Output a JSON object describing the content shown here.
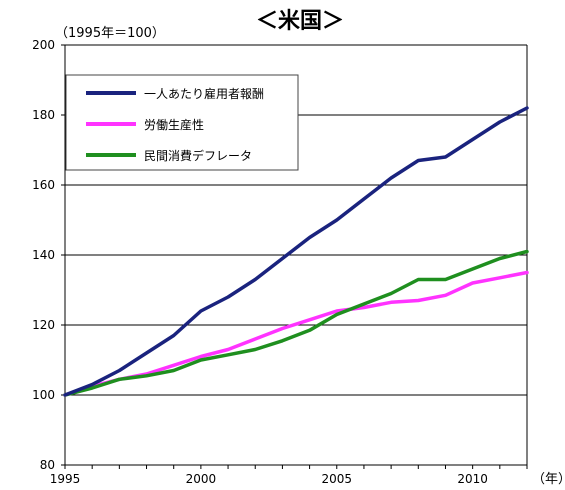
{
  "chart_data": {
    "type": "line",
    "title": "＜米国＞",
    "unit_label": "（1995年＝100）",
    "xlabel": "（年）",
    "ylabel": "",
    "xlim": [
      1995,
      2012
    ],
    "ylim": [
      80,
      200
    ],
    "yticks": [
      80,
      100,
      120,
      140,
      160,
      180,
      200
    ],
    "xticks": [
      1995,
      2000,
      2005,
      2010
    ],
    "grid": true,
    "legend_position": "top-left",
    "x": [
      1995,
      1996,
      1997,
      1998,
      1999,
      2000,
      2001,
      2002,
      2003,
      2004,
      2005,
      2006,
      2007,
      2008,
      2009,
      2010,
      2011,
      2012
    ],
    "series": [
      {
        "name": "一人あたり雇用者報酬",
        "color": "#1a237e",
        "values": [
          100,
          103,
          107,
          112,
          117,
          124,
          128,
          133,
          139,
          145,
          150,
          156,
          162,
          167,
          168,
          173,
          178,
          182
        ]
      },
      {
        "name": "労働生産性",
        "color": "#ff33ff",
        "values": [
          100,
          102.5,
          104.5,
          106,
          108.5,
          111,
          113,
          116,
          119,
          121.5,
          124,
          125,
          126.5,
          127,
          128.5,
          132,
          133.5,
          135
        ]
      },
      {
        "name": "民間消費デフレータ",
        "color": "#1f8f1f",
        "values": [
          100,
          102,
          104.5,
          105.5,
          107,
          110,
          111.5,
          113,
          115.5,
          118.5,
          123,
          126,
          129,
          133,
          133,
          136,
          139,
          141
        ]
      }
    ]
  }
}
